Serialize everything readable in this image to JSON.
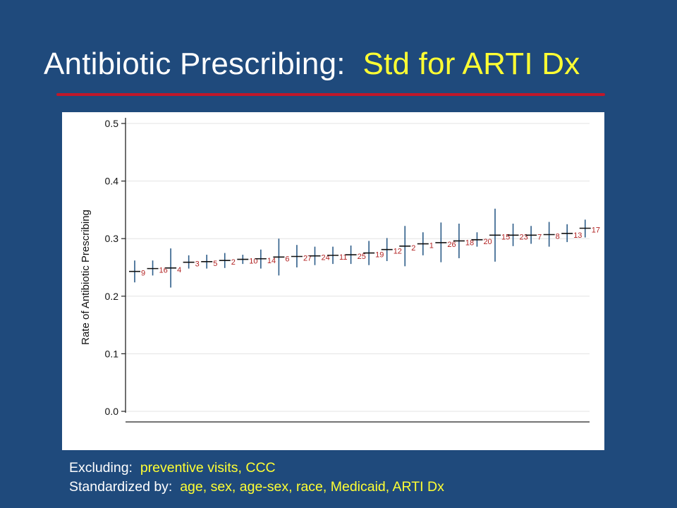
{
  "slide": {
    "title_prefix": "Antibiotic Prescribing:",
    "title_highlight": "Std for ARTI Dx",
    "excluding_label": "Excluding:",
    "excluding_value": "preventive visits, CCC",
    "standardized_label": "Standardized by:",
    "standardized_value": "age, sex, age-sex, race, Medicaid, ARTI Dx"
  },
  "colors": {
    "background": "#1f4a7c",
    "title": "#ffffff",
    "highlight": "#ffff33",
    "rule": "#c0182a",
    "ci_line": "#2c5c88",
    "point_label": "#b22222"
  },
  "chart_data": {
    "type": "scatter",
    "ylabel": "Rate of Antibiotic Prescribing",
    "xlabel": "",
    "ylim": [
      0.0,
      0.5
    ],
    "yticks": [
      "0.0",
      "0.1",
      "0.2",
      "0.3",
      "0.4",
      "0.5"
    ],
    "grid": true,
    "points": [
      {
        "label": "9",
        "rate": 0.243,
        "ci": [
          0.224,
          0.262
        ]
      },
      {
        "label": "16",
        "rate": 0.248,
        "ci": [
          0.236,
          0.262
        ]
      },
      {
        "label": "4",
        "rate": 0.249,
        "ci": [
          0.215,
          0.283
        ]
      },
      {
        "label": "3",
        "rate": 0.259,
        "ci": [
          0.248,
          0.271
        ]
      },
      {
        "label": "5",
        "rate": 0.26,
        "ci": [
          0.248,
          0.272
        ]
      },
      {
        "label": "2",
        "rate": 0.262,
        "ci": [
          0.249,
          0.275
        ]
      },
      {
        "label": "10",
        "rate": 0.264,
        "ci": [
          0.256,
          0.272
        ]
      },
      {
        "label": "14",
        "rate": 0.265,
        "ci": [
          0.248,
          0.281
        ]
      },
      {
        "label": "6",
        "rate": 0.268,
        "ci": [
          0.236,
          0.3
        ]
      },
      {
        "label": "27",
        "rate": 0.269,
        "ci": [
          0.25,
          0.289
        ]
      },
      {
        "label": "24",
        "rate": 0.27,
        "ci": [
          0.254,
          0.286
        ]
      },
      {
        "label": "11",
        "rate": 0.271,
        "ci": [
          0.256,
          0.286
        ]
      },
      {
        "label": "25",
        "rate": 0.272,
        "ci": [
          0.256,
          0.288
        ]
      },
      {
        "label": "19",
        "rate": 0.275,
        "ci": [
          0.254,
          0.296
        ]
      },
      {
        "label": "12",
        "rate": 0.281,
        "ci": [
          0.261,
          0.301
        ]
      },
      {
        "label": "2",
        "rate": 0.287,
        "ci": [
          0.252,
          0.322
        ]
      },
      {
        "label": "1",
        "rate": 0.291,
        "ci": [
          0.271,
          0.311
        ]
      },
      {
        "label": "26",
        "rate": 0.293,
        "ci": [
          0.259,
          0.328
        ]
      },
      {
        "label": "18",
        "rate": 0.296,
        "ci": [
          0.266,
          0.326
        ]
      },
      {
        "label": "20",
        "rate": 0.298,
        "ci": [
          0.286,
          0.311
        ]
      },
      {
        "label": "15",
        "rate": 0.306,
        "ci": [
          0.26,
          0.352
        ]
      },
      {
        "label": "23",
        "rate": 0.306,
        "ci": [
          0.287,
          0.326
        ]
      },
      {
        "label": "7",
        "rate": 0.306,
        "ci": [
          0.291,
          0.322
        ]
      },
      {
        "label": "8",
        "rate": 0.307,
        "ci": [
          0.286,
          0.329
        ]
      },
      {
        "label": "13",
        "rate": 0.309,
        "ci": [
          0.294,
          0.325
        ]
      },
      {
        "label": "17",
        "rate": 0.318,
        "ci": [
          0.302,
          0.333
        ]
      }
    ]
  }
}
